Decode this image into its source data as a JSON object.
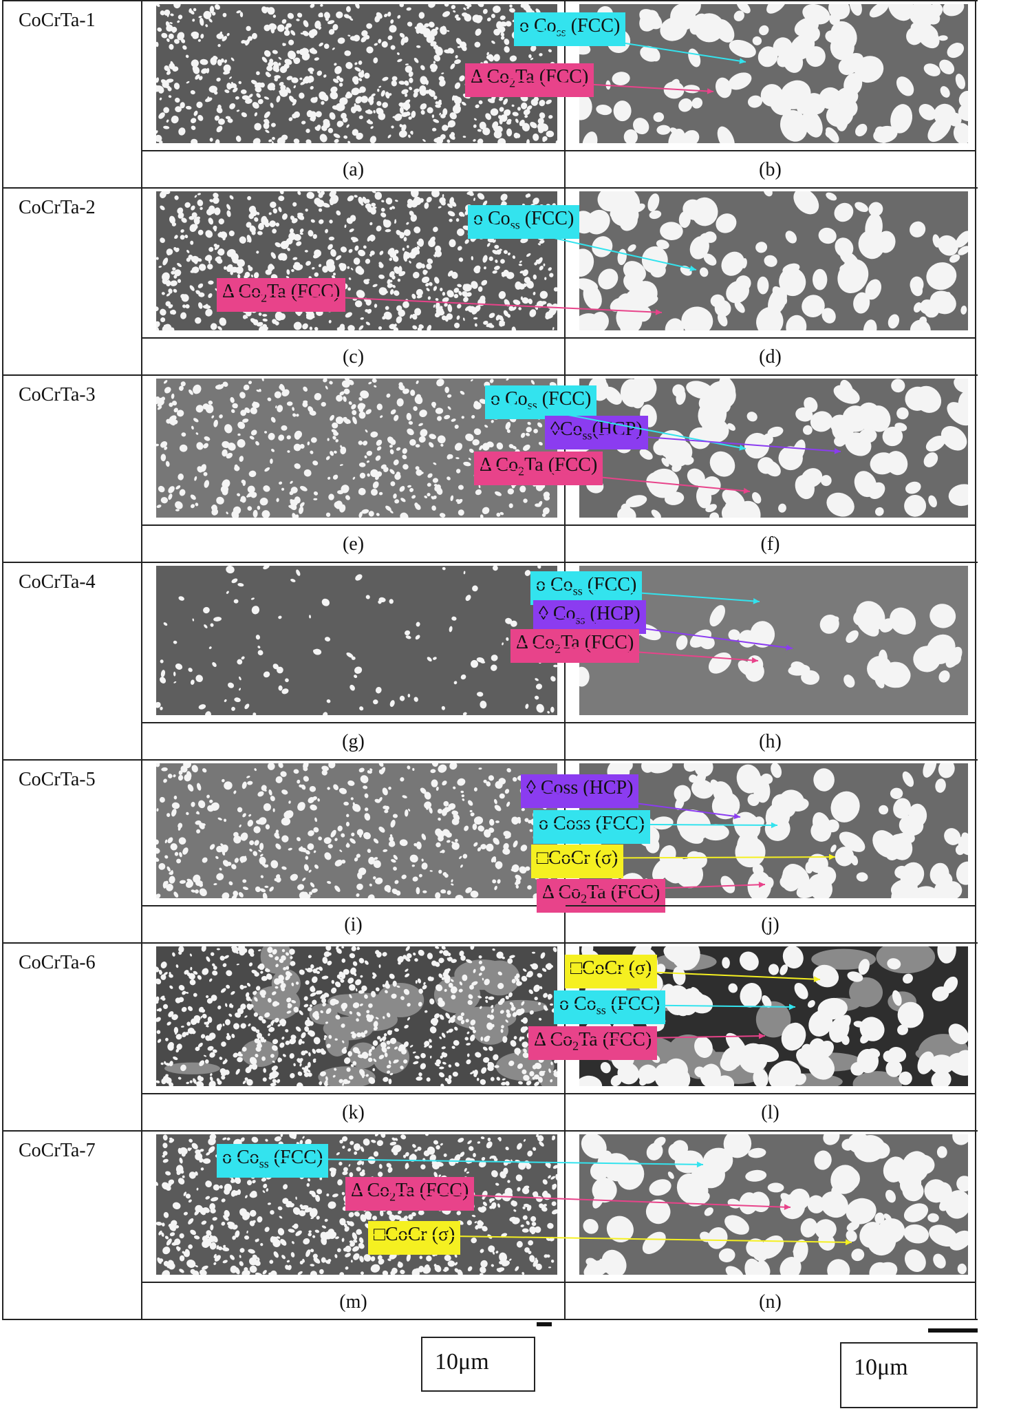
{
  "figure": {
    "rows": [
      {
        "sample": "CoCrTa-1",
        "left": {
          "caption": "(a)",
          "style": "fine"
        },
        "right": {
          "caption": "(b)",
          "style": "coarse",
          "labels": [
            {
              "prefix": "o Co",
              "sub": "ss",
              "suffix": " (FCC)",
              "color": "#33e3ee"
            },
            {
              "prefix": "Δ Co",
              "sub": "2",
              "suffix": "Ta (FCC)",
              "color": "#e8438a"
            }
          ]
        }
      },
      {
        "sample": "CoCrTa-2",
        "left": {
          "caption": "(c)",
          "style": "fine"
        },
        "right": {
          "caption": "(d)",
          "style": "coarse",
          "labels": [
            {
              "prefix": "o Co",
              "sub": "ss",
              "suffix": " (FCC)",
              "color": "#33e3ee"
            },
            {
              "prefix": "Δ Co",
              "sub": "2",
              "suffix": "Ta (FCC)",
              "color": "#e8438a"
            }
          ]
        }
      },
      {
        "sample": "CoCrTa-3",
        "left": {
          "caption": "(e)",
          "style": "dendrite"
        },
        "right": {
          "caption": "(f)",
          "style": "coarse",
          "labels": [
            {
              "prefix": "o Co",
              "sub": "ss",
              "suffix": " (FCC)",
              "color": "#33e3ee"
            },
            {
              "prefix": "◊Co",
              "sub": "ss",
              "suffix": "(HCP)",
              "color": "#8b3cf0"
            },
            {
              "prefix": "Δ Co",
              "sub": "2",
              "suffix": "Ta (FCC)",
              "color": "#e8438a"
            }
          ]
        }
      },
      {
        "sample": "CoCrTa-4",
        "left": {
          "caption": "(g)",
          "style": "sparse"
        },
        "right": {
          "caption": "(h)",
          "style": "chain",
          "labels": [
            {
              "prefix": "o Co",
              "sub": "ss",
              "suffix": " (FCC)",
              "color": "#33e3ee"
            },
            {
              "prefix": "◊ Co",
              "sub": "ss",
              "suffix": " (HCP)",
              "color": "#8b3cf0"
            },
            {
              "prefix": "Δ Co",
              "sub": "2",
              "suffix": "Ta (FCC)",
              "color": "#e8438a"
            }
          ]
        }
      },
      {
        "sample": "CoCrTa-5",
        "left": {
          "caption": "(i)",
          "style": "dendrite"
        },
        "right": {
          "caption": "(j)",
          "style": "coarse",
          "labels": [
            {
              "prefix": "◊ Coss (HCP)",
              "sub": "",
              "suffix": "",
              "color": "#8b3cf0"
            },
            {
              "prefix": "o Coss (FCC)",
              "sub": "",
              "suffix": "",
              "color": "#33e3ee"
            },
            {
              "prefix": "□CoCr (σ)",
              "sub": "",
              "suffix": "",
              "color": "#f5f021"
            },
            {
              "prefix": "Δ Co",
              "sub": "2",
              "suffix": "Ta (FCC)",
              "color": "#e8438a"
            }
          ]
        }
      },
      {
        "sample": "CoCrTa-6",
        "left": {
          "caption": "(k)",
          "style": "dark"
        },
        "right": {
          "caption": "(l)",
          "style": "darkcoarse",
          "labels": [
            {
              "prefix": "□CoCr (σ)",
              "sub": "",
              "suffix": "",
              "color": "#f5f021"
            },
            {
              "prefix": "o Co",
              "sub": "ss",
              "suffix": " (FCC)",
              "color": "#33e3ee"
            },
            {
              "prefix": "Δ Co",
              "sub": "2",
              "suffix": "Ta (FCC)",
              "color": "#e8438a"
            }
          ]
        }
      },
      {
        "sample": "CoCrTa-7",
        "left": {
          "caption": "(m)",
          "style": "fine"
        },
        "right": {
          "caption": "(n)",
          "style": "coarse",
          "labels": [
            {
              "prefix": "o Co",
              "sub": "ss",
              "suffix": " (FCC)",
              "color": "#33e3ee"
            },
            {
              "prefix": "Δ Co",
              "sub": "2",
              "suffix": "Ta (FCC)",
              "color": "#e8438a"
            },
            {
              "prefix": "□CoCr (σ)",
              "sub": "",
              "suffix": "",
              "color": "#f5f021"
            }
          ]
        }
      }
    ],
    "scale_bars": [
      {
        "text": "10μm"
      },
      {
        "text": "10μm"
      }
    ]
  }
}
